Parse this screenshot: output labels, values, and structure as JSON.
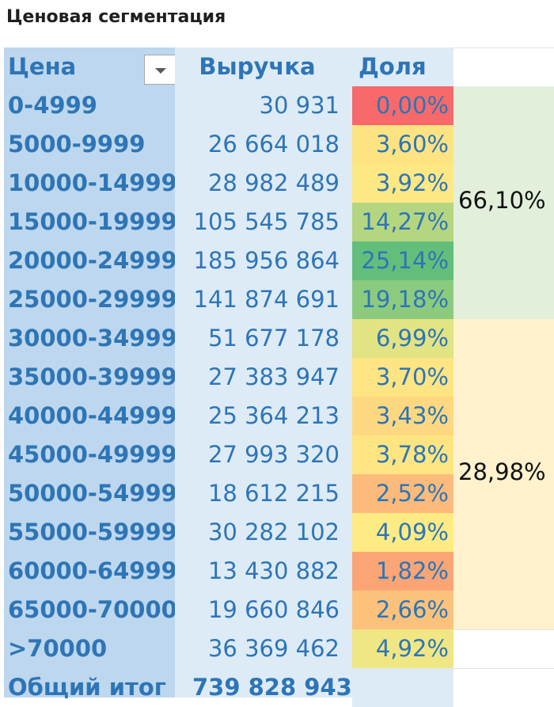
{
  "title": "Ценовая сегментация",
  "headers": {
    "price": "Цена",
    "revenue": "Выручка",
    "share": "Доля"
  },
  "rows": [
    {
      "price": "0-4999",
      "revenue": "30 931",
      "share": "0,00%",
      "color": "#f8696b"
    },
    {
      "price": "5000-9999",
      "revenue": "26 664 018",
      "share": "3,60%",
      "color": "#fee382"
    },
    {
      "price": "10000-14999",
      "revenue": "28 982 489",
      "share": "3,92%",
      "color": "#fee883"
    },
    {
      "price": "15000-19999",
      "revenue": "105 545 785",
      "share": "14,27%",
      "color": "#b5d680"
    },
    {
      "price": "20000-24999",
      "revenue": "185 956 864",
      "share": "25,14%",
      "color": "#63be7b"
    },
    {
      "price": "25000-29999",
      "revenue": "141 874 691",
      "share": "19,18%",
      "color": "#8ccb7e"
    },
    {
      "price": "30000-34999",
      "revenue": "51 677 178",
      "share": "6,99%",
      "color": "#e2e383"
    },
    {
      "price": "35000-39999",
      "revenue": "27 383 947",
      "share": "3,70%",
      "color": "#fee482"
    },
    {
      "price": "40000-44999",
      "revenue": "25 364 213",
      "share": "3,43%",
      "color": "#fed880"
    },
    {
      "price": "45000-49999",
      "revenue": "27 993 320",
      "share": "3,78%",
      "color": "#fee582"
    },
    {
      "price": "50000-54999",
      "revenue": "18 612 215",
      "share": "2,52%",
      "color": "#fcbb7b"
    },
    {
      "price": "55000-59999",
      "revenue": "30 282 102",
      "share": "4,09%",
      "color": "#ffeb84"
    },
    {
      "price": "60000-64999",
      "revenue": "13 430 882",
      "share": "1,82%",
      "color": "#fba576"
    },
    {
      "price": "65000-70000",
      "revenue": "19 660 846",
      "share": "2,66%",
      "color": "#fcc27c"
    },
    {
      "price": ">70000",
      "revenue": "36 369 462",
      "share": "4,92%",
      "color": "#f0e784"
    }
  ],
  "total": {
    "label": "Общий итог",
    "revenue": "739 828 943"
  },
  "groups": [
    {
      "label": "66,10%",
      "fill": "#e2efda"
    },
    {
      "label": "28,98%",
      "fill": "#fff2cc"
    }
  ],
  "colors": {
    "price_column": "#bdd7ee",
    "revenue_column": "#ddebf7",
    "share_header": "#ddebf7",
    "text": "#2e75b6"
  }
}
